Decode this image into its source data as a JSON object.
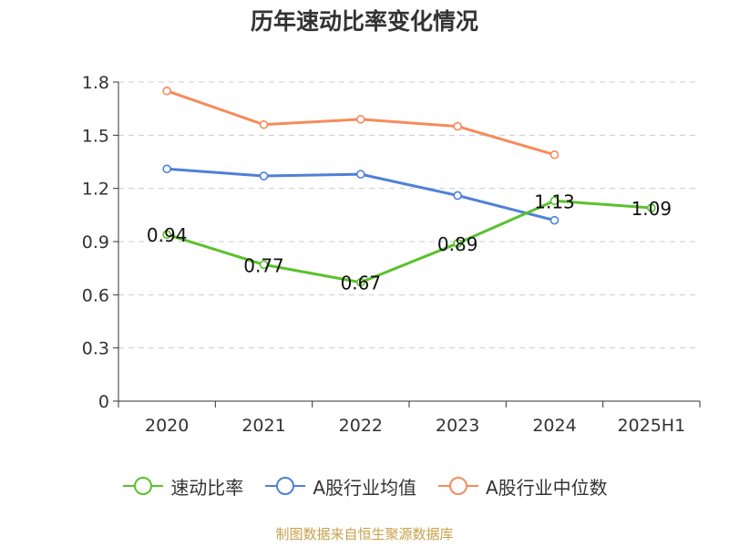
{
  "title": "历年速动比率变化情况",
  "source": "制图数据来自恒生聚源数据库",
  "chart_data": {
    "type": "line",
    "title": "历年速动比率变化情况",
    "categories": [
      "2020",
      "2021",
      "2022",
      "2023",
      "2024",
      "2025H1"
    ],
    "ylim": [
      0,
      1.8
    ],
    "yticks": [
      "0",
      "0.3",
      "0.6",
      "0.9",
      "1.2",
      "1.5",
      "1.8"
    ],
    "grid": true,
    "legend_position": "bottom",
    "series": [
      {
        "name": "速动比率",
        "color": "#5bc12d",
        "values": [
          0.94,
          0.77,
          0.67,
          0.89,
          1.13,
          1.09
        ],
        "labels": [
          "0.94",
          "0.77",
          "0.67",
          "0.89",
          "1.13",
          "1.09"
        ]
      },
      {
        "name": "A股行业均值",
        "color": "#4f80d8",
        "values": [
          1.31,
          1.27,
          1.28,
          1.16,
          1.02,
          null
        ]
      },
      {
        "name": "A股行业中位数",
        "color": "#f68b5a",
        "values": [
          1.75,
          1.56,
          1.59,
          1.55,
          1.39,
          null
        ]
      }
    ]
  }
}
